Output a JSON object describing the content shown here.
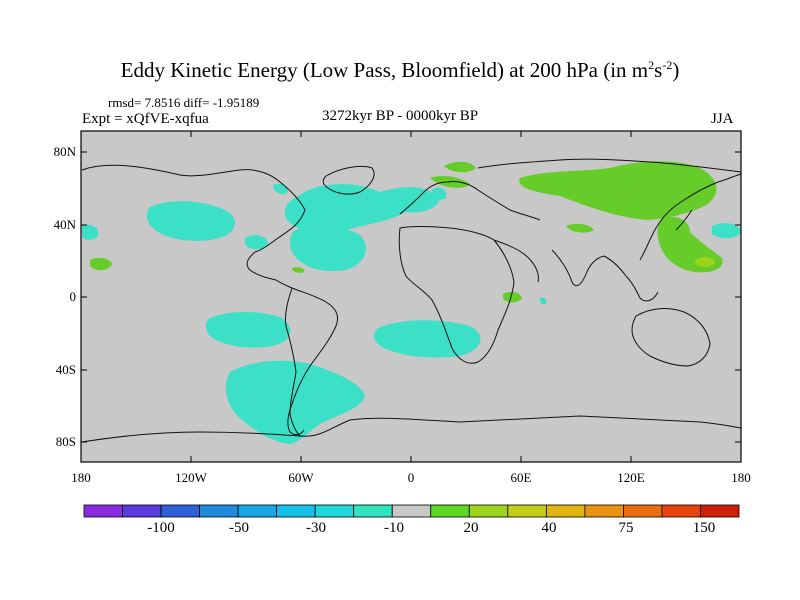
{
  "title_main": "Eddy Kinetic Energy (Low Pass, Bloomfield) at 200 hPa (in m",
  "title_sup1": "2",
  "title_mid": "s",
  "title_sup2": "-2",
  "title_end": ")",
  "stats": "rmsd= 7.8516 diff= -1.95189",
  "experiment": "Expt = xQfVE-xqfua",
  "period": "3272kyr BP - 0000kyr BP",
  "season": "JJA",
  "y_labels": [
    "80N",
    "40N",
    "0",
    "40S",
    "80S"
  ],
  "x_labels": [
    "180",
    "120W",
    "60W",
    "0",
    "60E",
    "120E",
    "180"
  ],
  "colorbar": {
    "colors": [
      "#8a2be2",
      "#5b3ae0",
      "#2f5fd8",
      "#1f8ae0",
      "#16a7e6",
      "#12c2e8",
      "#1fd8d8",
      "#30e4bd",
      "#c8c8c8",
      "#5ed622",
      "#9bd41a",
      "#c4cf14",
      "#e1b70f",
      "#e99410",
      "#ec6d10",
      "#e8420e",
      "#d11e0c"
    ],
    "labels": [
      "-100",
      "-50",
      "-30",
      "-10",
      "20",
      "40",
      "75",
      "150"
    ]
  },
  "colors": {
    "land_bg": "#c8c8c8",
    "negative": "#3ce0c6",
    "positive": "#66cc2a",
    "coast": "#111111"
  }
}
